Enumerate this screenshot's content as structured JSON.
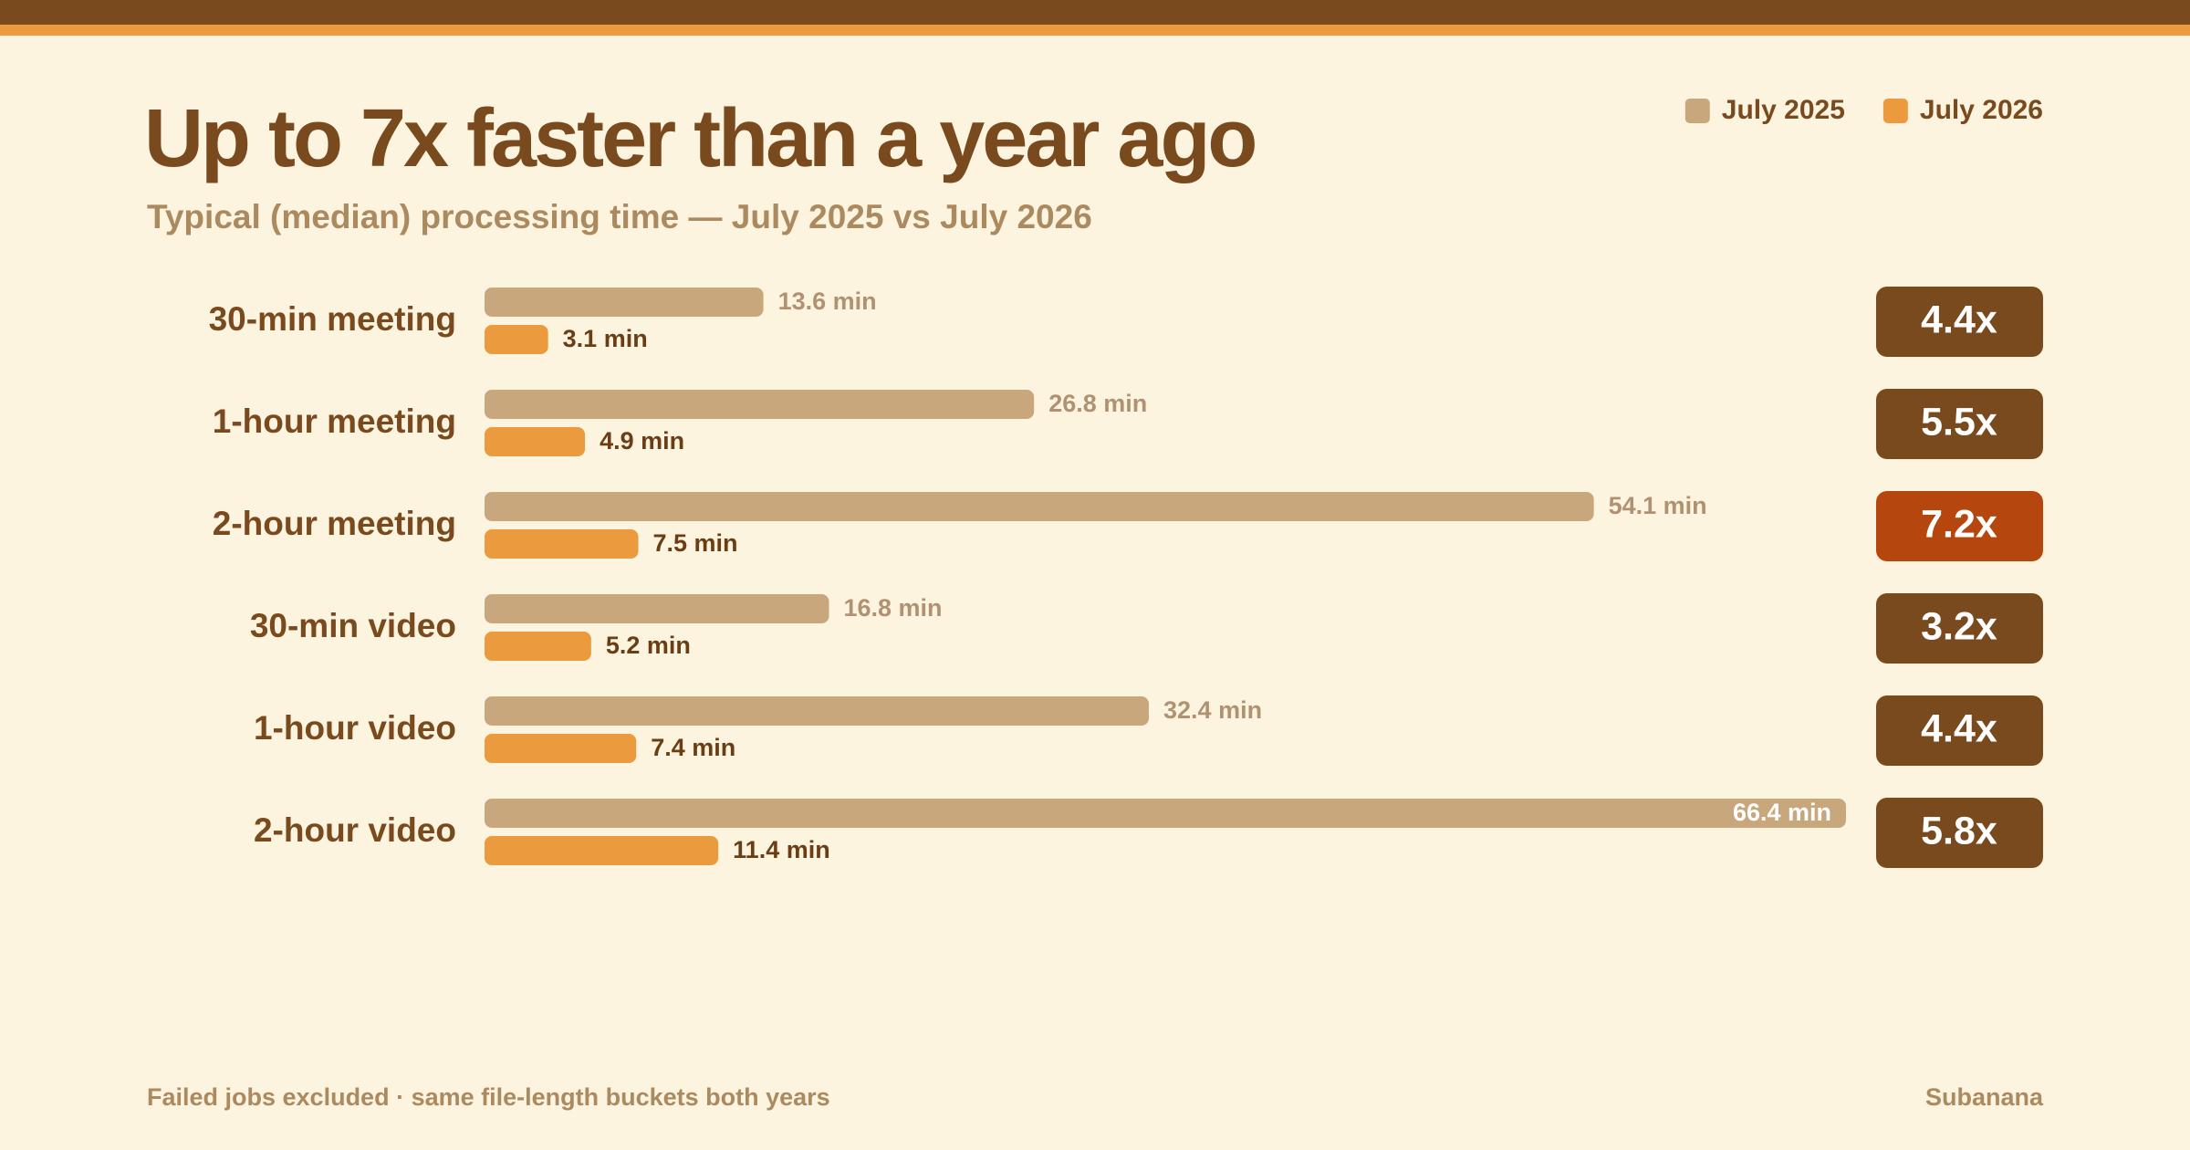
{
  "chart_data": {
    "type": "bar",
    "orientation": "horizontal",
    "title": "Up to 7x faster than a year ago",
    "subtitle": "Typical (median) processing time — July 2025 vs July 2026",
    "categories": [
      "30-min meeting",
      "1-hour meeting",
      "2-hour meeting",
      "30-min video",
      "1-hour video",
      "2-hour video"
    ],
    "series": [
      {
        "name": "July 2025",
        "color": "#c9a77c",
        "label_color": "#b09272",
        "values": [
          13.6,
          26.8,
          54.1,
          16.8,
          32.4,
          66.4
        ],
        "value_labels": [
          "13.6 min",
          "26.8 min",
          "54.1 min",
          "16.8 min",
          "32.4 min",
          "66.4 min"
        ]
      },
      {
        "name": "July 2026",
        "color": "#eb9b3e",
        "label_color": "#6b3d14",
        "values": [
          3.1,
          4.9,
          7.5,
          5.2,
          7.4,
          11.4
        ],
        "value_labels": [
          "3.1 min",
          "4.9 min",
          "7.5 min",
          "5.2 min",
          "7.4 min",
          "11.4 min"
        ]
      }
    ],
    "ratios": {
      "values": [
        4.4,
        5.5,
        7.2,
        3.2,
        4.4,
        5.8
      ],
      "value_labels": [
        "4.4x",
        "5.5x",
        "7.2x",
        "3.2x",
        "4.4x",
        "5.8x"
      ],
      "colors": [
        "#7a4a1f",
        "#7a4a1f",
        "#b5460e",
        "#7a4a1f",
        "#7a4a1f",
        "#7a4a1f"
      ]
    },
    "legend": "top-right"
  },
  "footer": {
    "note": "Failed jobs excluded · same file-length buckets both years",
    "brand": "Subanana"
  }
}
